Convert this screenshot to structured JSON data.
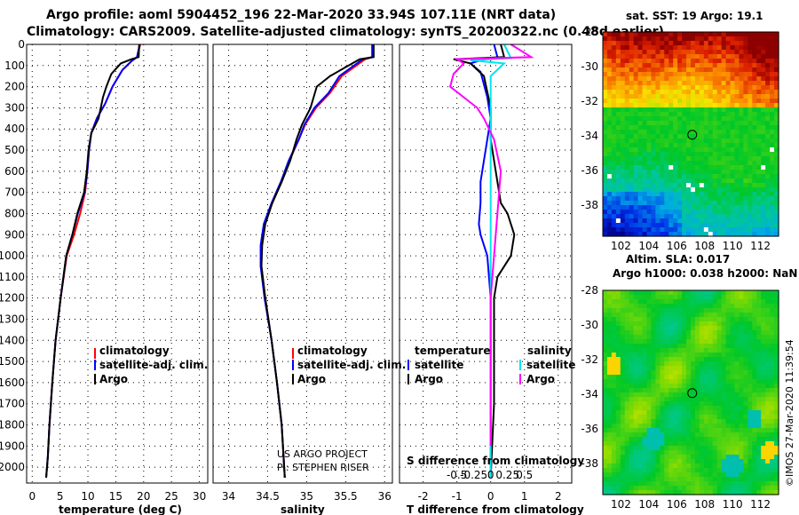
{
  "title": {
    "line1": "Argo profile: aoml 5904452_196 22-Mar-2020 33.94S 107.11E (NRT data)",
    "line2": "Climatology: CARS2009. Satellite-adjusted climatology: synTS_20200322.nc (0.48d earlier)"
  },
  "colors": {
    "argo": "#000000",
    "climatology": "#ff0000",
    "satellite_adj": "#0000ff",
    "salinity_diff_sat": "#00e5ee",
    "salinity_diff_argo": "#ff00ff"
  },
  "chart_data": [
    {
      "type": "line",
      "panel": "temperature",
      "xlabel": "temperature (deg C)",
      "xlim": [
        -1,
        31.5
      ],
      "xticks": [
        0,
        5,
        10,
        15,
        20,
        25,
        30
      ],
      "ylim": [
        2075,
        0
      ],
      "yticks": [
        0,
        100,
        200,
        300,
        400,
        500,
        600,
        700,
        800,
        900,
        1000,
        1100,
        1200,
        1300,
        1400,
        1500,
        1600,
        1700,
        1800,
        1900,
        2000
      ],
      "grid": true,
      "legend": [
        "climatology",
        "satellite-adj. clim.",
        "Argo"
      ],
      "series": [
        {
          "name": "climatology",
          "color": "#ff0000",
          "x": [
            19.4,
            18.8,
            17.8,
            16.2,
            14.4,
            13.1,
            11.6,
            10.6,
            10.2,
            9.9,
            9.5,
            8.6,
            7.5,
            6.2,
            5.1,
            4.2,
            3.6,
            3.1,
            2.8,
            2.5
          ],
          "y": [
            0,
            60,
            80,
            120,
            200,
            280,
            350,
            420,
            500,
            600,
            700,
            800,
            900,
            1000,
            1200,
            1400,
            1600,
            1800,
            1950,
            2050
          ]
        },
        {
          "name": "satellite-adj. clim.",
          "color": "#0000ff",
          "x": [
            19.3,
            18.8,
            17.8,
            16.2,
            14.4,
            13.1,
            11.6,
            10.6,
            10.2,
            9.9,
            9.4,
            8.2,
            7.2,
            6.1,
            5.1,
            4.2,
            3.6,
            3.1,
            2.8,
            2.5
          ],
          "y": [
            0,
            60,
            80,
            120,
            200,
            280,
            350,
            420,
            500,
            600,
            700,
            800,
            900,
            1000,
            1200,
            1400,
            1600,
            1800,
            1950,
            2050
          ]
        },
        {
          "name": "Argo",
          "color": "#000000",
          "x": [
            19.2,
            19.1,
            17.8,
            15.9,
            14.2,
            13.3,
            12.7,
            11.9,
            10.6,
            10.1,
            9.8,
            9.3,
            8.1,
            7.2,
            6.1,
            5.1,
            4.2,
            3.6,
            3.1,
            2.8,
            2.5
          ],
          "y": [
            0,
            60,
            70,
            90,
            140,
            200,
            250,
            350,
            420,
            500,
            600,
            700,
            800,
            900,
            1000,
            1200,
            1400,
            1600,
            1800,
            1950,
            2050
          ]
        }
      ]
    },
    {
      "type": "line",
      "panel": "salinity",
      "xlabel": "salinity",
      "xlim": [
        33.8,
        36.1
      ],
      "xticks": [
        34,
        34.5,
        35,
        35.5,
        36
      ],
      "xticklabels": [
        "34",
        "34.5",
        "35",
        "35.5",
        "36"
      ],
      "ylim": [
        2075,
        0
      ],
      "grid": true,
      "legend": [
        "climatology",
        "satellite-adj. clim.",
        "Argo"
      ],
      "annotations": [
        "US ARGO PROJECT",
        "PI: STEPHEN RISER"
      ],
      "series": [
        {
          "name": "climatology",
          "color": "#ff0000",
          "x": [
            35.85,
            35.85,
            35.75,
            35.45,
            35.3,
            35.12,
            34.98,
            34.9,
            34.78,
            34.68,
            34.56,
            34.46,
            34.42,
            34.42,
            34.47,
            34.55,
            34.62,
            34.68,
            34.72
          ],
          "y": [
            0,
            60,
            70,
            150,
            230,
            300,
            380,
            450,
            550,
            650,
            750,
            850,
            950,
            1050,
            1200,
            1400,
            1600,
            1800,
            2050
          ]
        },
        {
          "name": "satellite-adj. clim.",
          "color": "#0000ff",
          "x": [
            35.84,
            35.84,
            35.72,
            35.42,
            35.28,
            35.1,
            34.97,
            34.9,
            34.77,
            34.67,
            34.55,
            34.45,
            34.41,
            34.41,
            34.46,
            34.55,
            34.62,
            34.68,
            34.72
          ],
          "y": [
            0,
            60,
            70,
            150,
            230,
            300,
            380,
            450,
            550,
            650,
            750,
            850,
            950,
            1050,
            1200,
            1400,
            1600,
            1800,
            2050
          ]
        },
        {
          "name": "Argo",
          "color": "#000000",
          "x": [
            35.86,
            35.86,
            35.68,
            35.3,
            35.13,
            35.05,
            34.94,
            34.87,
            34.79,
            34.68,
            34.56,
            34.47,
            34.43,
            34.42,
            34.47,
            34.55,
            34.62,
            34.68,
            34.72
          ],
          "y": [
            0,
            60,
            70,
            150,
            200,
            300,
            380,
            450,
            550,
            650,
            750,
            850,
            950,
            1050,
            1200,
            1400,
            1600,
            1800,
            2050
          ]
        }
      ]
    },
    {
      "type": "line",
      "panel": "difference",
      "xlabel": "T difference from climatology",
      "xlabel2": "S difference from climatology",
      "xlim": [
        -2.7,
        2.4
      ],
      "xticks": [
        -2,
        -1,
        0,
        1,
        2
      ],
      "xticklabels": [
        "-2",
        "-1",
        "0",
        "1",
        "2"
      ],
      "sticks": [
        -0.5,
        -0.25,
        0,
        0.25,
        0.5
      ],
      "sticklabels": [
        "-0.5",
        "-0.25",
        "0",
        "0.25",
        "0.5"
      ],
      "ylim": [
        2075,
        0
      ],
      "grid": true,
      "legend_temperature": [
        "temperature",
        "satellite",
        "Argo"
      ],
      "legend_salinity": [
        "salinity",
        "satellite",
        "Argo"
      ],
      "series": [
        {
          "name": "T satellite",
          "color": "#0000ff",
          "x": [
            0.1,
            0.2,
            -0.3,
            -0.6,
            -0.3,
            -0.1,
            0.0,
            -0.1,
            -0.2,
            -0.3,
            -0.3,
            -0.35,
            -0.3,
            -0.1,
            -0.05,
            0.0,
            0.0,
            0.0,
            0.0
          ],
          "y": [
            0,
            60,
            75,
            90,
            130,
            250,
            350,
            450,
            550,
            650,
            750,
            850,
            900,
            1000,
            1100,
            1200,
            1400,
            1700,
            2050
          ]
        },
        {
          "name": "T Argo",
          "color": "#000000",
          "x": [
            0.3,
            0.4,
            -1.1,
            -0.6,
            -0.2,
            0.0,
            0.0,
            0.1,
            0.2,
            0.3,
            0.5,
            0.6,
            0.7,
            0.6,
            0.2,
            0.1,
            0.1,
            0.1,
            0.0
          ],
          "y": [
            0,
            60,
            70,
            90,
            150,
            300,
            450,
            550,
            650,
            750,
            800,
            850,
            900,
            1000,
            1100,
            1200,
            1400,
            1700,
            2050
          ]
        },
        {
          "name": "S satellite",
          "color": "#00e5ee",
          "x": [
            0.2,
            0.3,
            -0.3,
            0.2,
            0.0,
            0.0,
            0.0,
            0.0,
            0.0
          ],
          "y": [
            0,
            65,
            75,
            90,
            150,
            300,
            700,
            1200,
            2050
          ]
        },
        {
          "name": "S Argo",
          "color": "#ff00ff",
          "x": [
            0.3,
            0.6,
            -0.5,
            -0.4,
            -0.55,
            -0.6,
            -0.4,
            -0.2,
            -0.1,
            0.05,
            0.15,
            0.1,
            0.05,
            0.0,
            0.0,
            0.0,
            0.0
          ],
          "y": [
            0,
            60,
            70,
            90,
            140,
            200,
            250,
            300,
            350,
            450,
            600,
            800,
            1000,
            1200,
            1400,
            1700,
            1900
          ]
        }
      ]
    }
  ],
  "maps": {
    "sst": {
      "title": "sat. SST: 19 Argo: 19.1",
      "marker_lon": 107.11,
      "marker_lat": -33.94
    },
    "sla": {
      "title1": "Altim. SLA: 0.017",
      "title2": "Argo h1000: 0.038 h2000: NaN",
      "marker_lon": 107.11,
      "marker_lat": -33.94
    },
    "lon_ticks": [
      102,
      104,
      106,
      108,
      110,
      112
    ],
    "lon_labels": [
      "102",
      "104",
      "106",
      "108",
      "110",
      "112"
    ],
    "lat_ticks": [
      -28,
      -30,
      -32,
      -34,
      -36,
      -38
    ],
    "lat_labels": [
      "-28",
      "-30",
      "-32",
      "-34",
      "-36",
      "-38"
    ]
  },
  "watermark": "©IMOS 27-Mar-2020 11:39:54"
}
